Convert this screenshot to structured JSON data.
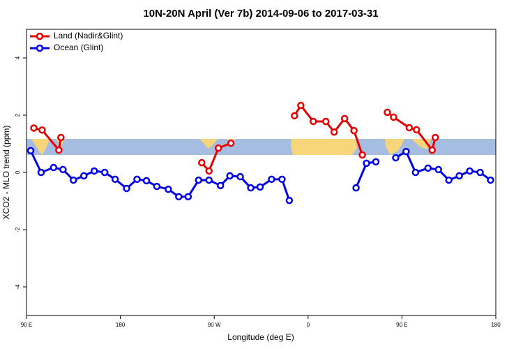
{
  "chart_data": {
    "type": "line",
    "title": "10N-20N April (Ver 7b)   2014-09-06 to 2017-03-31",
    "x_label": "Longitude (deg E)",
    "y_label": "XCO2 - MLO trend (ppm)",
    "xlim": [
      90,
      540
    ],
    "xticks": [
      {
        "value": 90,
        "label": "90 E"
      },
      180,
      {
        "value": 270,
        "label": "90 W"
      },
      {
        "value": 360,
        "label": "0"
      },
      {
        "value": 450,
        "label": "90 E"
      },
      {
        "value": 540,
        "label": "180"
      }
    ],
    "ylim": [
      -5,
      5
    ],
    "yticks": [
      -4,
      -2,
      0,
      2,
      4
    ],
    "legend": "top-left",
    "series": [
      {
        "name": "Land (Nadir&Glint)",
        "color": "#e60000",
        "x": [
          97,
          105,
          121,
          123,
          null,
          258,
          265,
          274,
          286,
          null,
          347,
          353,
          365,
          377,
          385,
          395,
          404,
          412,
          null,
          436,
          442,
          457,
          464,
          479,
          482
        ],
        "values": [
          1.55,
          1.48,
          0.78,
          1.22,
          null,
          0.34,
          0.05,
          0.85,
          1.02,
          null,
          1.98,
          2.34,
          1.78,
          1.78,
          1.41,
          1.88,
          1.46,
          0.61,
          null,
          2.1,
          1.93,
          1.56,
          1.49,
          0.78,
          1.22
        ]
      },
      {
        "name": "Ocean (Glint)",
        "color": "#0000e6",
        "x": [
          94,
          104,
          116,
          125,
          135,
          145,
          155,
          165,
          175,
          186,
          196,
          205,
          215,
          226,
          236,
          245,
          255,
          265,
          276,
          285,
          295,
          305,
          314,
          325,
          335,
          342,
          null,
          406,
          416,
          425,
          null,
          444,
          454,
          463,
          475,
          485,
          495,
          505,
          515,
          525,
          535
        ],
        "values": [
          0.76,
          0,
          0.17,
          0.1,
          -0.27,
          -0.12,
          0.05,
          0,
          -0.24,
          -0.56,
          -0.24,
          -0.29,
          -0.49,
          -0.59,
          -0.85,
          -0.85,
          -0.27,
          -0.27,
          -0.46,
          -0.12,
          -0.15,
          -0.54,
          -0.51,
          -0.24,
          -0.24,
          -0.98,
          null,
          -0.54,
          0.32,
          0.37,
          null,
          0.51,
          0.73,
          0,
          0.15,
          0.1,
          -0.27,
          -0.12,
          0.05,
          0,
          -0.27
        ]
      }
    ]
  }
}
